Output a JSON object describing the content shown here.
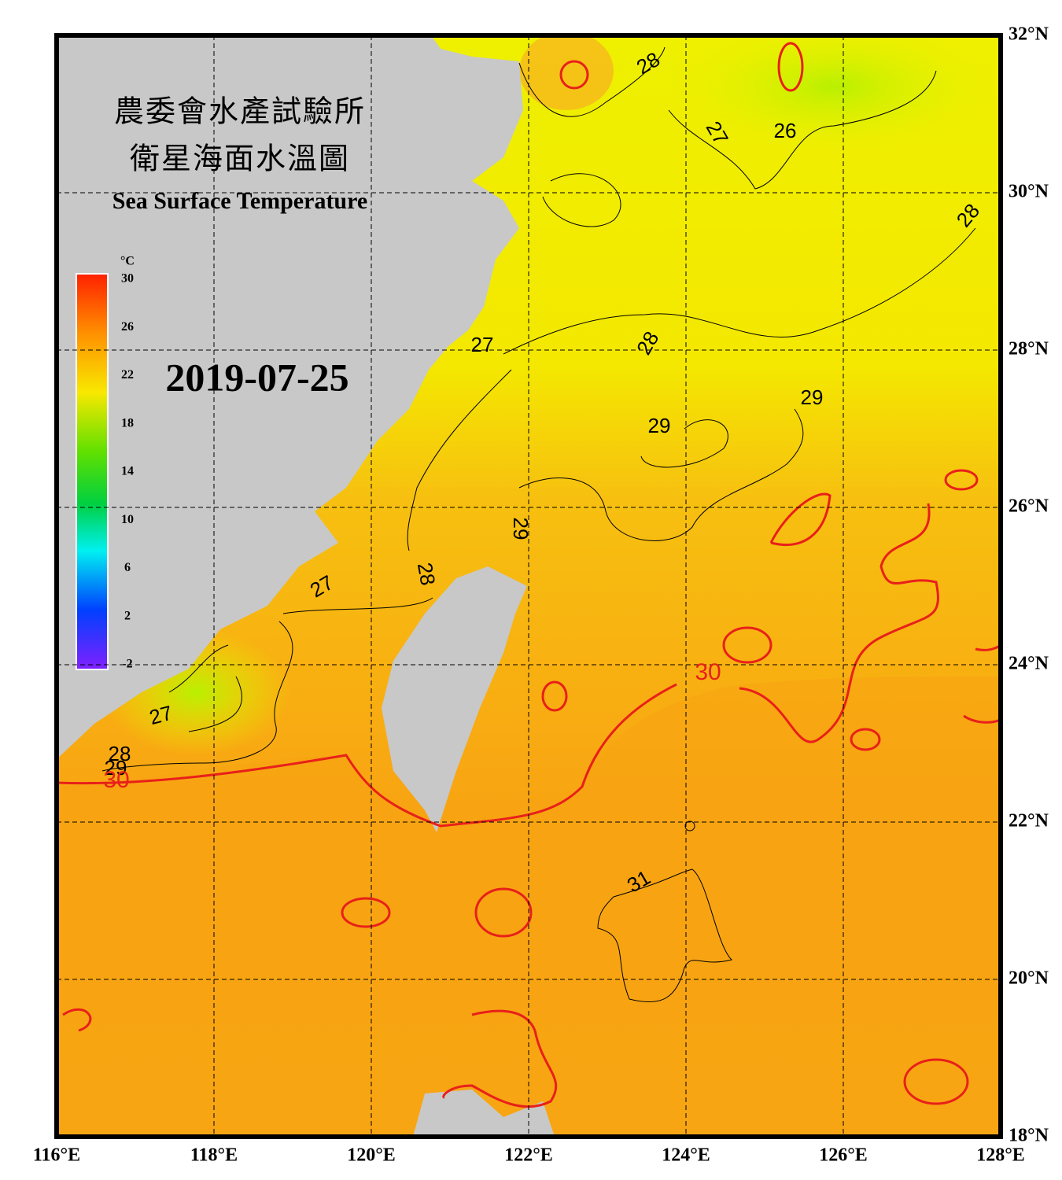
{
  "header": {
    "title_zh": "農委會水產試驗所",
    "subtitle_zh": "衛星海面水溫圖",
    "title_en": "Sea Surface Temperature",
    "date": "2019-07-25"
  },
  "colorbar": {
    "unit": "°C",
    "range": [
      -2,
      30
    ],
    "ticks": [
      30,
      26,
      22,
      18,
      14,
      10,
      6,
      2,
      -2
    ]
  },
  "map": {
    "lon_range": [
      116,
      128
    ],
    "lat_range": [
      18,
      32
    ],
    "lon_ticks": [
      {
        "value": 116,
        "label": "116°E"
      },
      {
        "value": 118,
        "label": "118°E"
      },
      {
        "value": 120,
        "label": "120°E"
      },
      {
        "value": 122,
        "label": "122°E"
      },
      {
        "value": 124,
        "label": "124°E"
      },
      {
        "value": 126,
        "label": "126°E"
      },
      {
        "value": 128,
        "label": "128°E"
      }
    ],
    "lat_ticks": [
      {
        "value": 32,
        "label": "32°N"
      },
      {
        "value": 30,
        "label": "30°N"
      },
      {
        "value": 28,
        "label": "28°N"
      },
      {
        "value": 26,
        "label": "26°N"
      },
      {
        "value": 24,
        "label": "24°N"
      },
      {
        "value": 22,
        "label": "22°N"
      },
      {
        "value": 20,
        "label": "20°N"
      },
      {
        "value": 18,
        "label": "18°N"
      }
    ],
    "contour_labels": [
      28,
      27,
      26,
      28,
      28,
      27,
      29,
      29,
      29,
      28,
      27,
      30,
      27,
      28,
      29,
      30,
      31
    ]
  }
}
